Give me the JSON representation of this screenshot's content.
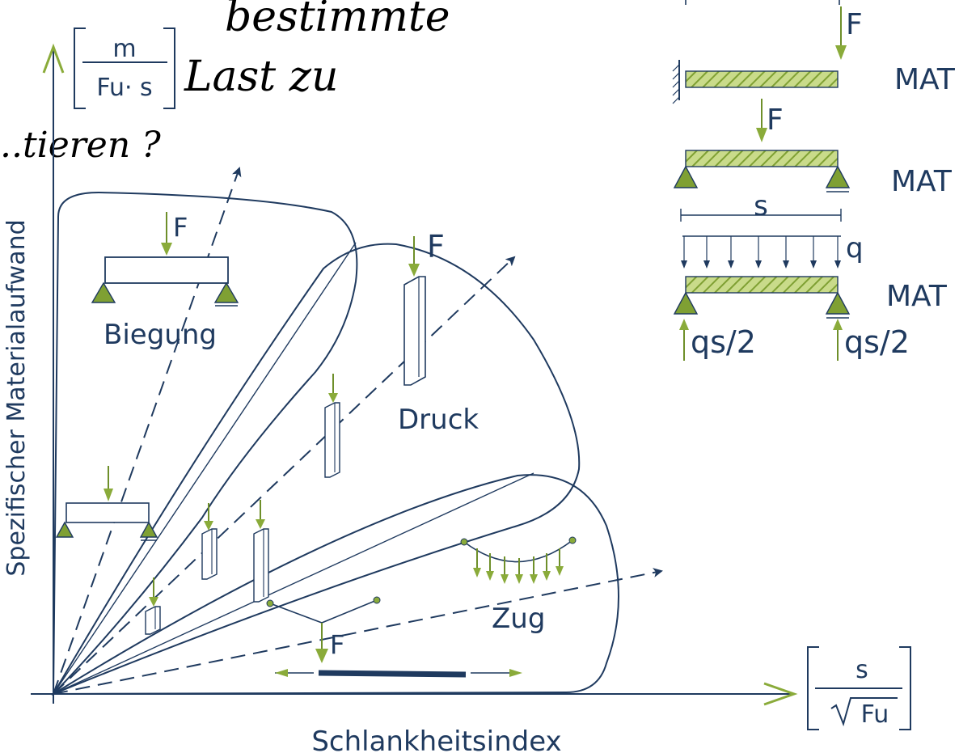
{
  "handwriting": {
    "line1": "bestimmte",
    "line2": "Last zu",
    "line3": "...tieren ?"
  },
  "axes": {
    "y_label": "Spezifischer Materialaufwand",
    "x_label": "Schlankheitsindex",
    "y_unit_numerator": "m",
    "y_unit_denominator": "Fu· s",
    "x_unit_numerator": "s",
    "x_unit_denominator": "Fu"
  },
  "regions": {
    "biegung": "Biegung",
    "druck": "Druck",
    "zug": "Zug"
  },
  "force_labels": {
    "biegung_top": "F",
    "druck_top": "F",
    "zug_bottom": "F"
  },
  "cases": {
    "force_f": "F",
    "mat": "MAT",
    "span": "s",
    "load": "q",
    "reaction": "qs/2"
  },
  "colors": {
    "ink": "#1f3a5f",
    "support_green": "#7fa033",
    "hatch_green": "#a8c45a",
    "handwriting": "#000000"
  }
}
